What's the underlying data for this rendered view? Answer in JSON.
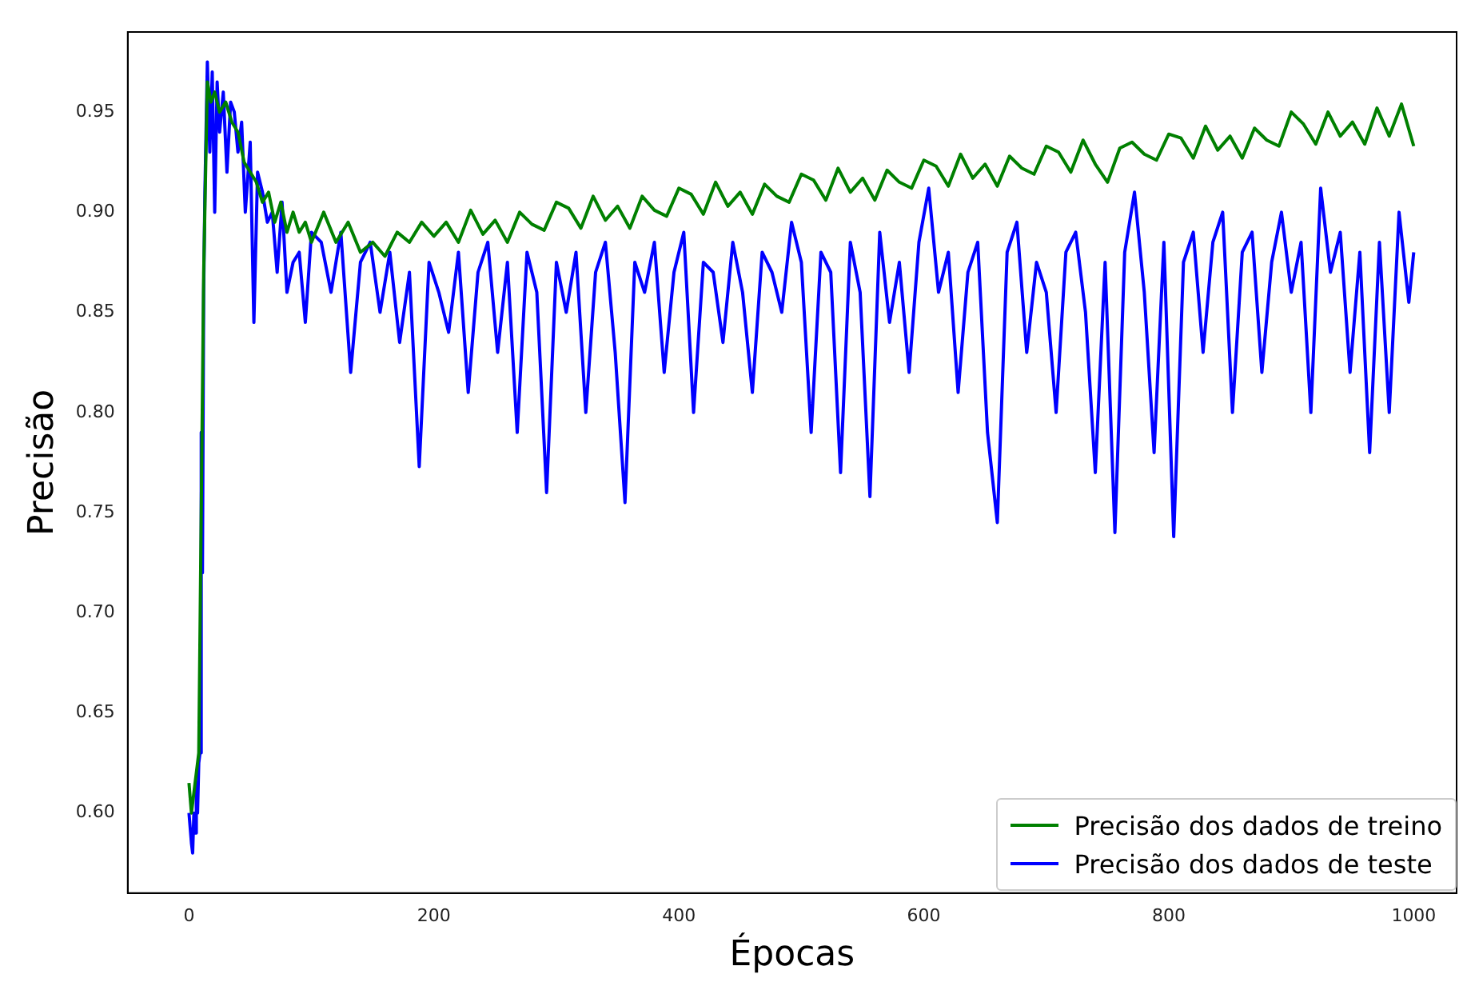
{
  "chart_data": {
    "type": "line",
    "xlabel": "Épocas",
    "ylabel": "Precisão",
    "xlim": [
      -50,
      1035
    ],
    "ylim": [
      0.56,
      0.99
    ],
    "xticks": [
      0,
      200,
      400,
      600,
      800,
      1000
    ],
    "yticks": [
      {
        "value": 0.6,
        "label": "0.60"
      },
      {
        "value": 0.65,
        "label": "0.65"
      },
      {
        "value": 0.7,
        "label": "0.70"
      },
      {
        "value": 0.75,
        "label": "0.75"
      },
      {
        "value": 0.8,
        "label": "0.80"
      },
      {
        "value": 0.85,
        "label": "0.85"
      },
      {
        "value": 0.9,
        "label": "0.90"
      },
      {
        "value": 0.95,
        "label": "0.95"
      }
    ],
    "grid": false,
    "legend": "bottom right",
    "marker": "none",
    "line_style": "solid",
    "series": [
      {
        "name": "Precisão dos dados de treino",
        "color": "#008000",
        "x": [
          0,
          2,
          4,
          6,
          8,
          10,
          12,
          15,
          18,
          21,
          25,
          30,
          35,
          40,
          45,
          50,
          55,
          60,
          65,
          70,
          75,
          80,
          85,
          90,
          95,
          100,
          110,
          120,
          130,
          140,
          150,
          160,
          170,
          180,
          190,
          200,
          210,
          220,
          230,
          240,
          250,
          260,
          270,
          280,
          290,
          300,
          310,
          320,
          330,
          340,
          350,
          360,
          370,
          380,
          390,
          400,
          410,
          420,
          430,
          440,
          450,
          460,
          470,
          480,
          490,
          500,
          510,
          520,
          530,
          540,
          550,
          560,
          570,
          580,
          590,
          600,
          610,
          620,
          630,
          640,
          650,
          660,
          670,
          680,
          690,
          700,
          710,
          720,
          730,
          740,
          750,
          760,
          770,
          780,
          790,
          800,
          810,
          820,
          830,
          840,
          850,
          860,
          870,
          880,
          890,
          900,
          910,
          920,
          930,
          940,
          950,
          960,
          970,
          980,
          990,
          1000
        ],
        "values": [
          0.615,
          0.6,
          0.61,
          0.62,
          0.63,
          0.75,
          0.87,
          0.965,
          0.955,
          0.96,
          0.95,
          0.955,
          0.945,
          0.94,
          0.925,
          0.92,
          0.915,
          0.905,
          0.91,
          0.895,
          0.905,
          0.89,
          0.9,
          0.89,
          0.895,
          0.885,
          0.9,
          0.885,
          0.895,
          0.88,
          0.885,
          0.878,
          0.89,
          0.885,
          0.895,
          0.888,
          0.895,
          0.885,
          0.901,
          0.889,
          0.896,
          0.885,
          0.9,
          0.894,
          0.891,
          0.905,
          0.902,
          0.892,
          0.908,
          0.896,
          0.903,
          0.892,
          0.908,
          0.901,
          0.898,
          0.912,
          0.909,
          0.899,
          0.915,
          0.903,
          0.91,
          0.899,
          0.914,
          0.908,
          0.905,
          0.919,
          0.916,
          0.906,
          0.922,
          0.91,
          0.917,
          0.906,
          0.921,
          0.915,
          0.912,
          0.926,
          0.923,
          0.913,
          0.929,
          0.917,
          0.924,
          0.913,
          0.928,
          0.922,
          0.919,
          0.933,
          0.93,
          0.92,
          0.936,
          0.924,
          0.915,
          0.932,
          0.935,
          0.929,
          0.926,
          0.939,
          0.937,
          0.927,
          0.943,
          0.931,
          0.938,
          0.927,
          0.942,
          0.936,
          0.933,
          0.95,
          0.944,
          0.934,
          0.95,
          0.938,
          0.945,
          0.934,
          0.952,
          0.938,
          0.954,
          0.933
        ]
      },
      {
        "name": "Precisão dos dados de teste",
        "color": "#0000ff",
        "x": [
          0,
          2,
          3,
          4,
          5,
          6,
          7,
          8,
          9,
          10,
          11,
          12,
          13,
          15,
          17,
          19,
          21,
          23,
          25,
          28,
          31,
          34,
          37,
          40,
          43,
          46,
          50,
          53,
          56,
          60,
          64,
          68,
          72,
          76,
          80,
          85,
          90,
          95,
          100,
          108,
          116,
          124,
          132,
          140,
          148,
          156,
          164,
          172,
          180,
          188,
          196,
          204,
          212,
          220,
          228,
          236,
          244,
          252,
          260,
          268,
          276,
          284,
          292,
          300,
          308,
          316,
          324,
          332,
          340,
          348,
          356,
          364,
          372,
          380,
          388,
          396,
          404,
          412,
          420,
          428,
          436,
          444,
          452,
          460,
          468,
          476,
          484,
          492,
          500,
          508,
          516,
          524,
          532,
          540,
          548,
          556,
          564,
          572,
          580,
          588,
          596,
          604,
          612,
          620,
          628,
          636,
          644,
          652,
          660,
          668,
          676,
          684,
          692,
          700,
          708,
          716,
          724,
          732,
          740,
          748,
          756,
          764,
          772,
          780,
          788,
          796,
          804,
          812,
          820,
          828,
          836,
          844,
          852,
          860,
          868,
          876,
          884,
          892,
          900,
          908,
          916,
          924,
          932,
          940,
          948,
          956,
          964,
          972,
          980,
          988,
          996,
          1000
        ],
        "values": [
          0.6,
          0.585,
          0.58,
          0.6,
          0.59,
          0.615,
          0.6,
          0.625,
          0.63,
          0.79,
          0.72,
          0.86,
          0.91,
          0.975,
          0.93,
          0.97,
          0.9,
          0.965,
          0.94,
          0.96,
          0.92,
          0.955,
          0.95,
          0.93,
          0.945,
          0.9,
          0.935,
          0.845,
          0.92,
          0.91,
          0.895,
          0.9,
          0.87,
          0.905,
          0.86,
          0.875,
          0.88,
          0.845,
          0.89,
          0.885,
          0.86,
          0.89,
          0.82,
          0.875,
          0.885,
          0.85,
          0.88,
          0.835,
          0.87,
          0.773,
          0.875,
          0.86,
          0.84,
          0.88,
          0.81,
          0.87,
          0.885,
          0.83,
          0.875,
          0.79,
          0.88,
          0.86,
          0.76,
          0.875,
          0.85,
          0.88,
          0.8,
          0.87,
          0.885,
          0.83,
          0.755,
          0.875,
          0.86,
          0.885,
          0.82,
          0.87,
          0.89,
          0.8,
          0.875,
          0.87,
          0.835,
          0.885,
          0.86,
          0.81,
          0.88,
          0.87,
          0.85,
          0.895,
          0.875,
          0.79,
          0.88,
          0.87,
          0.77,
          0.885,
          0.86,
          0.758,
          0.89,
          0.845,
          0.875,
          0.82,
          0.885,
          0.912,
          0.86,
          0.88,
          0.81,
          0.87,
          0.885,
          0.79,
          0.745,
          0.88,
          0.895,
          0.83,
          0.875,
          0.86,
          0.8,
          0.88,
          0.89,
          0.85,
          0.77,
          0.875,
          0.74,
          0.88,
          0.91,
          0.86,
          0.78,
          0.885,
          0.738,
          0.875,
          0.89,
          0.83,
          0.885,
          0.9,
          0.8,
          0.88,
          0.89,
          0.82,
          0.875,
          0.9,
          0.86,
          0.885,
          0.8,
          0.912,
          0.87,
          0.89,
          0.82,
          0.88,
          0.78,
          0.885,
          0.8,
          0.9,
          0.855,
          0.88
        ]
      }
    ]
  }
}
